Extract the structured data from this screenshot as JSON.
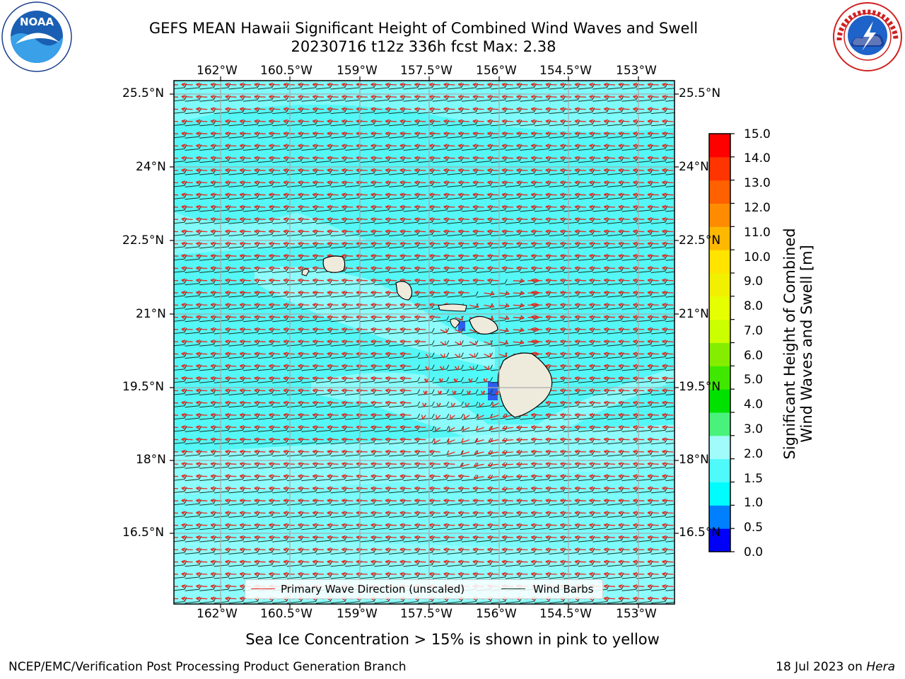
{
  "header": {
    "title_line1": "GEFS MEAN Hawaii Significant Height of Combined Wind Waves and Swell",
    "title_line2": "20230716 t12z 336h fcst   Max: 2.38"
  },
  "map": {
    "region": "Hawaii",
    "lon_ticks": [
      "162°W",
      "160.5°W",
      "159°W",
      "157.5°W",
      "156°W",
      "154.5°W",
      "153°W"
    ],
    "lat_ticks": [
      "25.5°N",
      "24°N",
      "22.5°N",
      "21°N",
      "19.5°N",
      "18°N",
      "16.5°N"
    ],
    "background_colors": {
      "low_sea": "#55f6f6",
      "mid_sea": "#a2fdfd",
      "land": "#eeeadc",
      "water_deep": "#2b5df0"
    }
  },
  "colorbar": {
    "label": "Significant Height of Combined Wind Waves and Swell [m]",
    "label_line1": "Significant Height of Combined",
    "label_line2": "Wind Waves and Swell [m]",
    "ticks": [
      "15.0",
      "14.0",
      "13.0",
      "12.0",
      "11.0",
      "10.0",
      "9.0",
      "8.0",
      "7.0",
      "6.0",
      "5.0",
      "4.0",
      "3.0",
      "2.0",
      "1.5",
      "1.0",
      "0.5",
      "0.0"
    ],
    "colors": [
      "#0000f9",
      "#0080ff",
      "#00fcfc",
      "#4ffafa",
      "#a1fbfb",
      "#49f27a",
      "#00e100",
      "#40e800",
      "#85ee00",
      "#cbff00",
      "#e6ff00",
      "#f0f000",
      "#ffe400",
      "#ffb800",
      "#ff8c00",
      "#ff6000",
      "#ff3400",
      "#ff0000"
    ]
  },
  "legend": {
    "items": [
      {
        "label": "Primary Wave Direction (unscaled)",
        "color": "#e8281e"
      },
      {
        "label": "Wind Barbs",
        "color": "#0a3a2a"
      }
    ]
  },
  "note": "Sea Ice Concentration > 15% is shown in pink to yellow",
  "footer": {
    "left": "NCEP/EMC/Verification Post Processing Product Generation Branch",
    "date": "18 Jul 2023 on ",
    "host": "Hera"
  }
}
